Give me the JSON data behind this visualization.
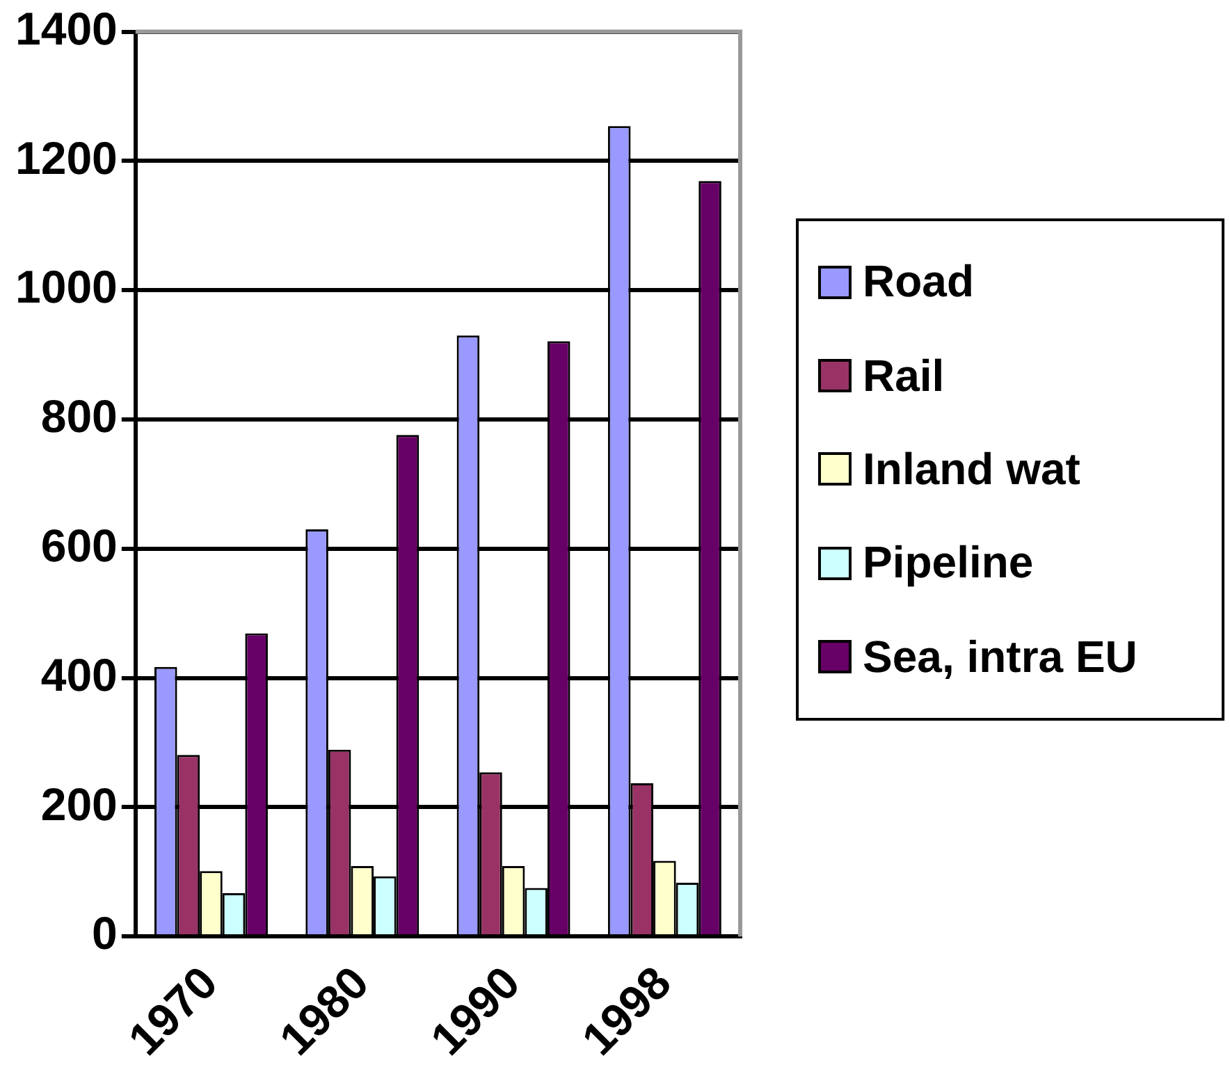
{
  "chart_data": {
    "type": "bar",
    "categories": [
      "1970",
      "1980",
      "1990",
      "1998"
    ],
    "series": [
      {
        "name": "Road",
        "color": "#9999ff",
        "values": [
          417,
          630,
          930,
          1254
        ]
      },
      {
        "name": "Rail",
        "color": "#993366",
        "values": [
          281,
          289,
          254,
          237
        ]
      },
      {
        "name": "Inland wat",
        "color": "#ffffcc",
        "values": [
          101,
          109,
          109,
          117
        ]
      },
      {
        "name": "Pipeline",
        "color": "#ccffff",
        "values": [
          67,
          93,
          75,
          83
        ]
      },
      {
        "name": "Sea, intra EU",
        "color": "#660066",
        "values": [
          469,
          776,
          921,
          1169
        ]
      }
    ],
    "ylim": [
      0,
      1400
    ],
    "yticks": [
      0,
      200,
      400,
      600,
      800,
      1000,
      1200,
      1400
    ],
    "grid": "y",
    "legend": "right"
  }
}
